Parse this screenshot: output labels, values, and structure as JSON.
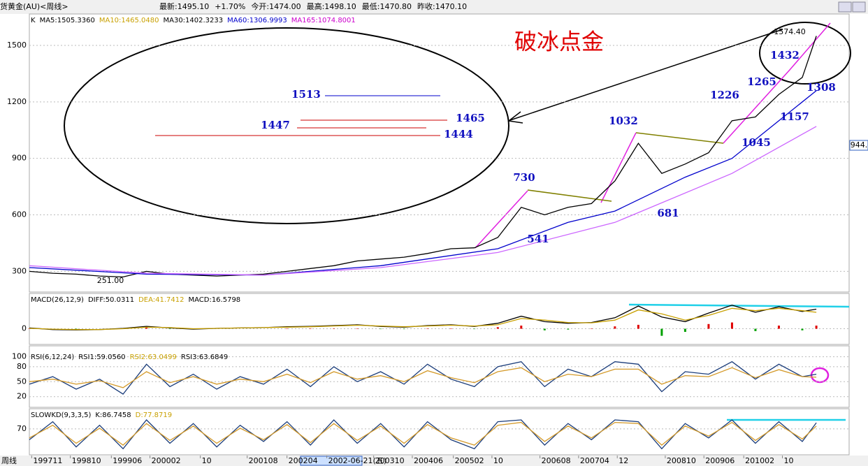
{
  "header": {
    "name": "货黄金(AU)<周线>",
    "fields": [
      "最新:1495.10",
      "+1.70%",
      "今开:1474.00",
      "最高:1498.10",
      "最低:1470.80",
      "昨收:1470.10"
    ]
  },
  "chart_data": [
    {
      "type": "line",
      "title": "破冰点金",
      "legend": [
        {
          "text": "K",
          "color": "#000000"
        },
        {
          "text": "MA5:1505.3360",
          "color": "#000000"
        },
        {
          "text": "MA10:1465.0480",
          "color": "#c8a000"
        },
        {
          "text": "MA30:1402.3233",
          "color": "#000000"
        },
        {
          "text": "MA60:1306.9993",
          "color": "#0000cc"
        },
        {
          "text": "MA165:1074.8001",
          "color": "#cc00cc"
        }
      ],
      "ylim": [
        190,
        1667
      ],
      "yticks": [
        300,
        600,
        900,
        1200,
        1500
      ],
      "xlim": [
        0,
        700
      ],
      "x_axis_label": "周线",
      "xticks": [
        {
          "value": 2,
          "label": "199711"
        },
        {
          "value": 35,
          "label": "199810"
        },
        {
          "value": 70,
          "label": "199906"
        },
        {
          "value": 103,
          "label": "200002"
        },
        {
          "value": 146,
          "label": "10"
        },
        {
          "value": 186,
          "label": "200108"
        },
        {
          "value": 220,
          "label": "200204"
        },
        {
          "value": 254,
          "label": "2002-06-21(五)"
        },
        {
          "value": 294,
          "label": "200310"
        },
        {
          "value": 327,
          "label": "200406"
        },
        {
          "value": 362,
          "label": "200502"
        },
        {
          "value": 395,
          "label": "10"
        },
        {
          "value": 436,
          "label": "200608"
        },
        {
          "value": 469,
          "label": "200704"
        },
        {
          "value": 502,
          "label": "12"
        },
        {
          "value": 543,
          "label": "200810"
        },
        {
          "value": 576,
          "label": "200906"
        },
        {
          "value": 610,
          "label": "201002"
        },
        {
          "value": 643,
          "label": "10"
        }
      ],
      "series": [
        {
          "color": "#000000",
          "x": [
            0,
            20,
            40,
            60,
            80,
            100,
            120,
            140,
            160,
            180,
            200,
            220,
            240,
            260,
            280,
            300,
            320,
            340,
            360,
            380,
            400,
            420,
            440,
            460,
            480,
            500,
            520,
            540,
            560,
            580,
            600,
            620,
            640,
            660,
            672
          ],
          "values": [
            300,
            290,
            285,
            275,
            270,
            300,
            285,
            280,
            275,
            280,
            285,
            300,
            315,
            330,
            355,
            365,
            375,
            395,
            420,
            425,
            480,
            640,
            600,
            640,
            660,
            780,
            980,
            820,
            870,
            930,
            1100,
            1120,
            1240,
            1330,
            1550
          ]
        },
        {
          "color": "#0000cc",
          "x": [
            0,
            100,
            200,
            300,
            400,
            460,
            500,
            560,
            600,
            640,
            672
          ],
          "values": [
            320,
            285,
            280,
            330,
            420,
            560,
            620,
            800,
            900,
            1100,
            1260
          ]
        },
        {
          "color": "#cc66ff",
          "x": [
            0,
            100,
            200,
            300,
            400,
            500,
            600,
            672
          ],
          "values": [
            330,
            290,
            280,
            320,
            400,
            560,
            820,
            1070
          ]
        }
      ],
      "annotations": [
        "730",
        "541",
        "1032",
        "681",
        "1226",
        "1045",
        "1265",
        "1157",
        "1432",
        "1308",
        "1574.40",
        "251.00",
        "1513",
        "1447",
        "1465",
        "1444",
        "944."
      ]
    },
    {
      "type": "macd",
      "legend": [
        {
          "text": "MACD(26,12,9)",
          "color": "#000000"
        },
        {
          "text": "DIFF:50.0311",
          "color": "#000000"
        },
        {
          "text": "DEA:41.7412",
          "color": "#c8a000"
        },
        {
          "text": "MACD:16.5798",
          "color": "#000000"
        }
      ],
      "ylim": [
        -40,
        90
      ],
      "yticks": [
        0
      ],
      "x": [
        0,
        20,
        40,
        60,
        80,
        100,
        120,
        140,
        160,
        180,
        200,
        220,
        240,
        260,
        280,
        300,
        320,
        340,
        360,
        380,
        400,
        420,
        440,
        460,
        480,
        500,
        520,
        540,
        560,
        580,
        600,
        620,
        640,
        660,
        672
      ],
      "series": [
        {
          "color": "#000000",
          "values": [
            2,
            -2,
            -3,
            -2,
            1,
            6,
            2,
            -1,
            1,
            2,
            3,
            5,
            6,
            8,
            10,
            6,
            4,
            8,
            10,
            6,
            14,
            32,
            18,
            14,
            16,
            28,
            58,
            30,
            18,
            40,
            60,
            42,
            56,
            44,
            50
          ]
        },
        {
          "color": "#c8a000",
          "values": [
            1,
            -1,
            -2,
            -2,
            0,
            4,
            3,
            0,
            1,
            2,
            3,
            4,
            5,
            7,
            9,
            7,
            5,
            7,
            9,
            7,
            10,
            26,
            22,
            16,
            15,
            22,
            48,
            38,
            22,
            34,
            52,
            46,
            52,
            46,
            42
          ]
        }
      ],
      "bars": [
        1,
        -1,
        -1,
        0,
        1,
        3,
        -1,
        -1,
        0,
        0,
        0,
        1,
        1,
        1,
        1,
        -1,
        -1,
        1,
        1,
        -1,
        4,
        8,
        -4,
        -2,
        1,
        6,
        10,
        -18,
        -8,
        12,
        16,
        -6,
        8,
        -4,
        8
      ]
    },
    {
      "type": "line",
      "legend": [
        {
          "text": "RSI(6,12,24)",
          "color": "#000000"
        },
        {
          "text": "RSI1:59.0560",
          "color": "#000000"
        },
        {
          "text": "RSI2:63.0499",
          "color": "#c8a000"
        },
        {
          "text": "RSI3:63.6849",
          "color": "#000000"
        }
      ],
      "ylim": [
        0,
        112
      ],
      "yticks": [
        20,
        50,
        80,
        100
      ],
      "x": [
        0,
        20,
        40,
        60,
        80,
        100,
        120,
        140,
        160,
        180,
        200,
        220,
        240,
        260,
        280,
        300,
        320,
        340,
        360,
        380,
        400,
        420,
        440,
        460,
        480,
        500,
        520,
        540,
        560,
        580,
        600,
        620,
        640,
        660,
        672
      ],
      "series": [
        {
          "color": "#1a3c7a",
          "values": [
            45,
            60,
            35,
            55,
            25,
            85,
            40,
            65,
            35,
            60,
            45,
            75,
            40,
            80,
            50,
            70,
            45,
            85,
            55,
            40,
            80,
            90,
            40,
            75,
            60,
            90,
            85,
            30,
            70,
            65,
            90,
            55,
            85,
            60,
            65
          ]
        },
        {
          "color": "#d49a2a",
          "values": [
            50,
            55,
            45,
            52,
            38,
            70,
            48,
            60,
            45,
            55,
            50,
            65,
            48,
            70,
            55,
            62,
            50,
            72,
            58,
            48,
            70,
            78,
            50,
            65,
            60,
            75,
            75,
            45,
            62,
            60,
            78,
            58,
            74,
            60,
            59
          ]
        }
      ]
    },
    {
      "type": "line",
      "legend": [
        {
          "text": "SLOWKD(9,3,3,5)",
          "color": "#000000"
        },
        {
          "text": "K:86.7458",
          "color": "#000000"
        },
        {
          "text": "D:77.8719",
          "color": "#c8a000"
        }
      ],
      "ylim": [
        0,
        126
      ],
      "yticks": [
        70
      ],
      "x": [
        0,
        20,
        40,
        60,
        80,
        100,
        120,
        140,
        160,
        180,
        200,
        220,
        240,
        260,
        280,
        300,
        320,
        340,
        360,
        380,
        400,
        420,
        440,
        460,
        480,
        500,
        520,
        540,
        560,
        580,
        600,
        620,
        640,
        660,
        672
      ],
      "series": [
        {
          "color": "#1a3c7a",
          "values": [
            40,
            90,
            20,
            80,
            15,
            95,
            30,
            85,
            20,
            80,
            35,
            90,
            25,
            95,
            30,
            85,
            20,
            90,
            40,
            15,
            90,
            95,
            25,
            85,
            40,
            95,
            90,
            15,
            85,
            45,
            95,
            30,
            90,
            35,
            87
          ]
        },
        {
          "color": "#d49a2a",
          "values": [
            45,
            80,
            30,
            72,
            25,
            85,
            38,
            78,
            30,
            72,
            40,
            82,
            32,
            85,
            38,
            78,
            30,
            82,
            45,
            25,
            80,
            88,
            35,
            78,
            45,
            88,
            85,
            25,
            78,
            50,
            88,
            38,
            82,
            42,
            78
          ]
        }
      ]
    }
  ]
}
